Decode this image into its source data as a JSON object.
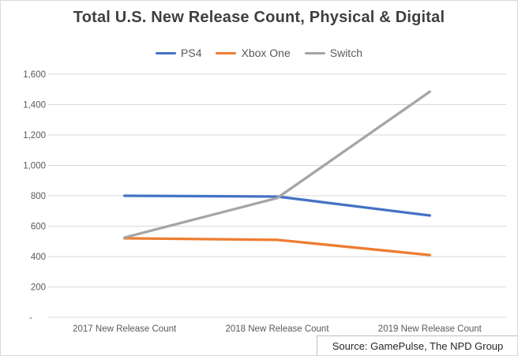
{
  "chart_data": {
    "type": "line",
    "title": "Total U.S. New Release Count, Physical & Digital",
    "categories": [
      "2017 New Release Count",
      "2018 New Release Count",
      "2019 New Release Count"
    ],
    "series": [
      {
        "name": "PS4",
        "color": "#4472C4",
        "values": [
          800,
          795,
          670
        ]
      },
      {
        "name": "Xbox One",
        "color": "#ED7D31",
        "values": [
          520,
          510,
          410
        ]
      },
      {
        "name": "Switch",
        "color": "#A5A5A5",
        "values": [
          525,
          785,
          1485
        ]
      }
    ],
    "ylim": [
      0,
      1600
    ],
    "ytick_interval": 200,
    "ytick_labels": [
      "-",
      "200",
      "400",
      "600",
      "800",
      "1,000",
      "1,200",
      "1,400",
      "1,600"
    ],
    "grid": true,
    "legend_position": "top",
    "xlabel": "",
    "ylabel": ""
  },
  "source_note": "Source: GamePulse, The NPD Group",
  "colors": {
    "title_text": "#3f3f3f",
    "axis_text": "#595959",
    "gridline": "#d9d9d9",
    "frame_border": "#d9d9d9",
    "source_border": "#bfbfbf",
    "source_text": "#262626"
  }
}
